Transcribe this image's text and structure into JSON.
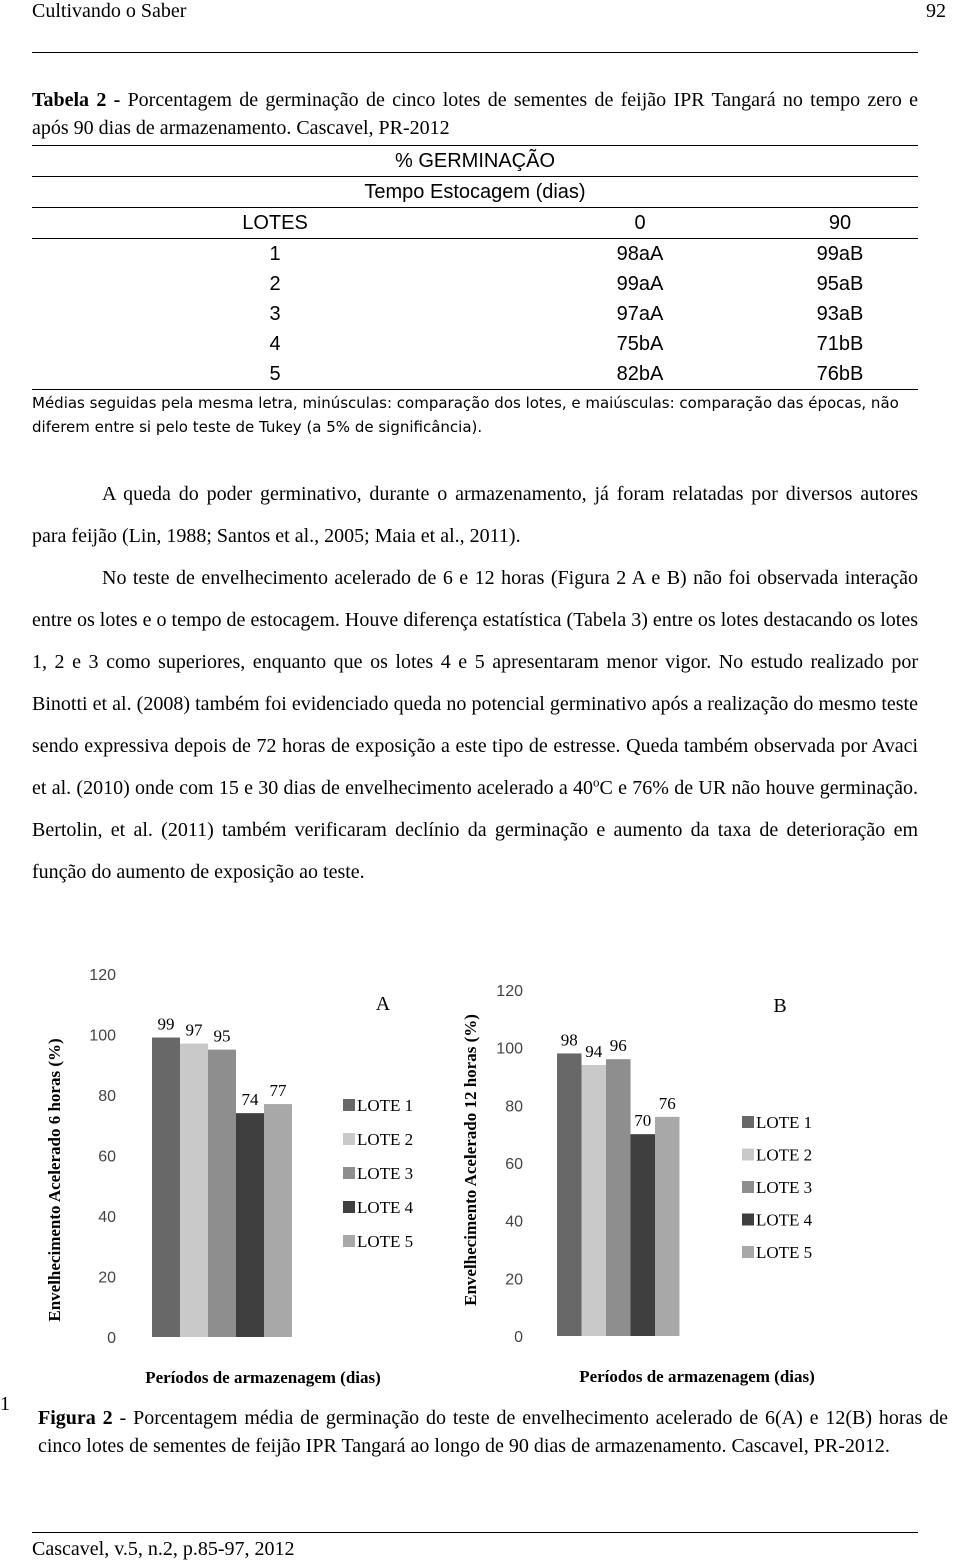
{
  "header": {
    "journal": "Cultivando o Saber",
    "page": "92"
  },
  "table": {
    "caption_label": "Tabela 2 -",
    "caption": "Porcentagem de germinação de cinco lotes de sementes de feijão IPR Tangará no tempo zero e após 90 dias de armazenamento. Cascavel, PR-2012",
    "group_header": "% GERMINAÇÃO",
    "subheader": "Tempo Estocagem (dias)",
    "columns": [
      "LOTES",
      "0",
      "90"
    ],
    "rows": [
      [
        "1",
        "98aA",
        "99aB"
      ],
      [
        "2",
        "99aA",
        "95aB"
      ],
      [
        "3",
        "97aA",
        "93aB"
      ],
      [
        "4",
        "75bA",
        "71bB"
      ],
      [
        "5",
        "82bA",
        "76bB"
      ]
    ],
    "note": "Médias seguidas pela mesma letra, minúsculas: comparação dos lotes, e maiúsculas: comparação das épocas, não diferem entre si pelo teste de Tukey (a 5% de significância)."
  },
  "paragraphs": [
    {
      "text": "A queda do poder germinativo, durante o armazenamento, já foram relatadas por diversos autores para feijão (Lin, 1988; Santos et al., 2005; Maia et al., 2011)."
    },
    {
      "text_before": "No teste de envelhecimento acelerado de 6 e 12 horas (Figura 2 A e B) não foi observada interação entre os lotes e o tempo de estocagem. Houve diferença estatística (Tabela 3) entre os lotes destacando os lotes 1, 2 e 3 como superiores, enquanto que os lotes 4 e 5 apresentaram menor vigor. No estudo realizado por Binotti et al. (2008) também foi evidenciado queda no potencial germinativo após a realização do mesmo teste sendo expressiva depois de 72 horas de exposição a este tipo de estresse. Queda também observada por Avaci et al. (2010) onde com 15 e 30 dias de envelhecimento acelerado a 40",
      "superscript": "o",
      "text_after": "C e 76% de UR não houve germinação. Bertolin, et al. (2011) também verificaram declínio da germinação e aumento da taxa de deterioração em função do aumento de exposição ao teste."
    }
  ],
  "chart_data": [
    {
      "type": "bar",
      "title": "A",
      "y_label": "Envelhecimento Acelerado 6 horas (%)",
      "x_label": "Períodos de armazenagem (dias)",
      "ylim": [
        0,
        120
      ],
      "yticks": [
        0,
        20,
        40,
        60,
        80,
        100,
        120
      ],
      "series": [
        {
          "name": "LOTE 1",
          "color": "#686868",
          "values": [
            99
          ]
        },
        {
          "name": "LOTE 2",
          "color": "#c9c9c9",
          "values": [
            97
          ]
        },
        {
          "name": "LOTE 3",
          "color": "#8e8e8e",
          "values": [
            95
          ]
        },
        {
          "name": "LOTE 4",
          "color": "#3f3f3f",
          "values": [
            74
          ]
        },
        {
          "name": "LOTE 5",
          "color": "#a8a8a8",
          "values": [
            77
          ]
        }
      ]
    },
    {
      "type": "bar",
      "title": "B",
      "y_label": "Envelhecimento Acelerado 12 horas (%)",
      "x_label": "Períodos de armazenagem (dias)",
      "ylim": [
        0,
        120
      ],
      "yticks": [
        0,
        20,
        40,
        60,
        80,
        100,
        120
      ],
      "series": [
        {
          "name": "LOTE 1",
          "color": "#686868",
          "values": [
            98
          ]
        },
        {
          "name": "LOTE 2",
          "color": "#c9c9c9",
          "values": [
            94
          ]
        },
        {
          "name": "LOTE 3",
          "color": "#8e8e8e",
          "values": [
            96
          ]
        },
        {
          "name": "LOTE 4",
          "color": "#3f3f3f",
          "values": [
            70
          ]
        },
        {
          "name": "LOTE 5",
          "color": "#a8a8a8",
          "values": [
            76
          ]
        }
      ]
    }
  ],
  "figure": {
    "side_number": "1",
    "caption_label": "Figura 2",
    "caption": "- Porcentagem média de germinação do teste de envelhecimento acelerado de 6(A) e 12(B) horas de cinco lotes de sementes de feijão IPR Tangará ao longo de 90 dias de armazenamento. Cascavel, PR-2012."
  },
  "footer": "Cascavel, v.5, n.2, p.85-97, 2012"
}
